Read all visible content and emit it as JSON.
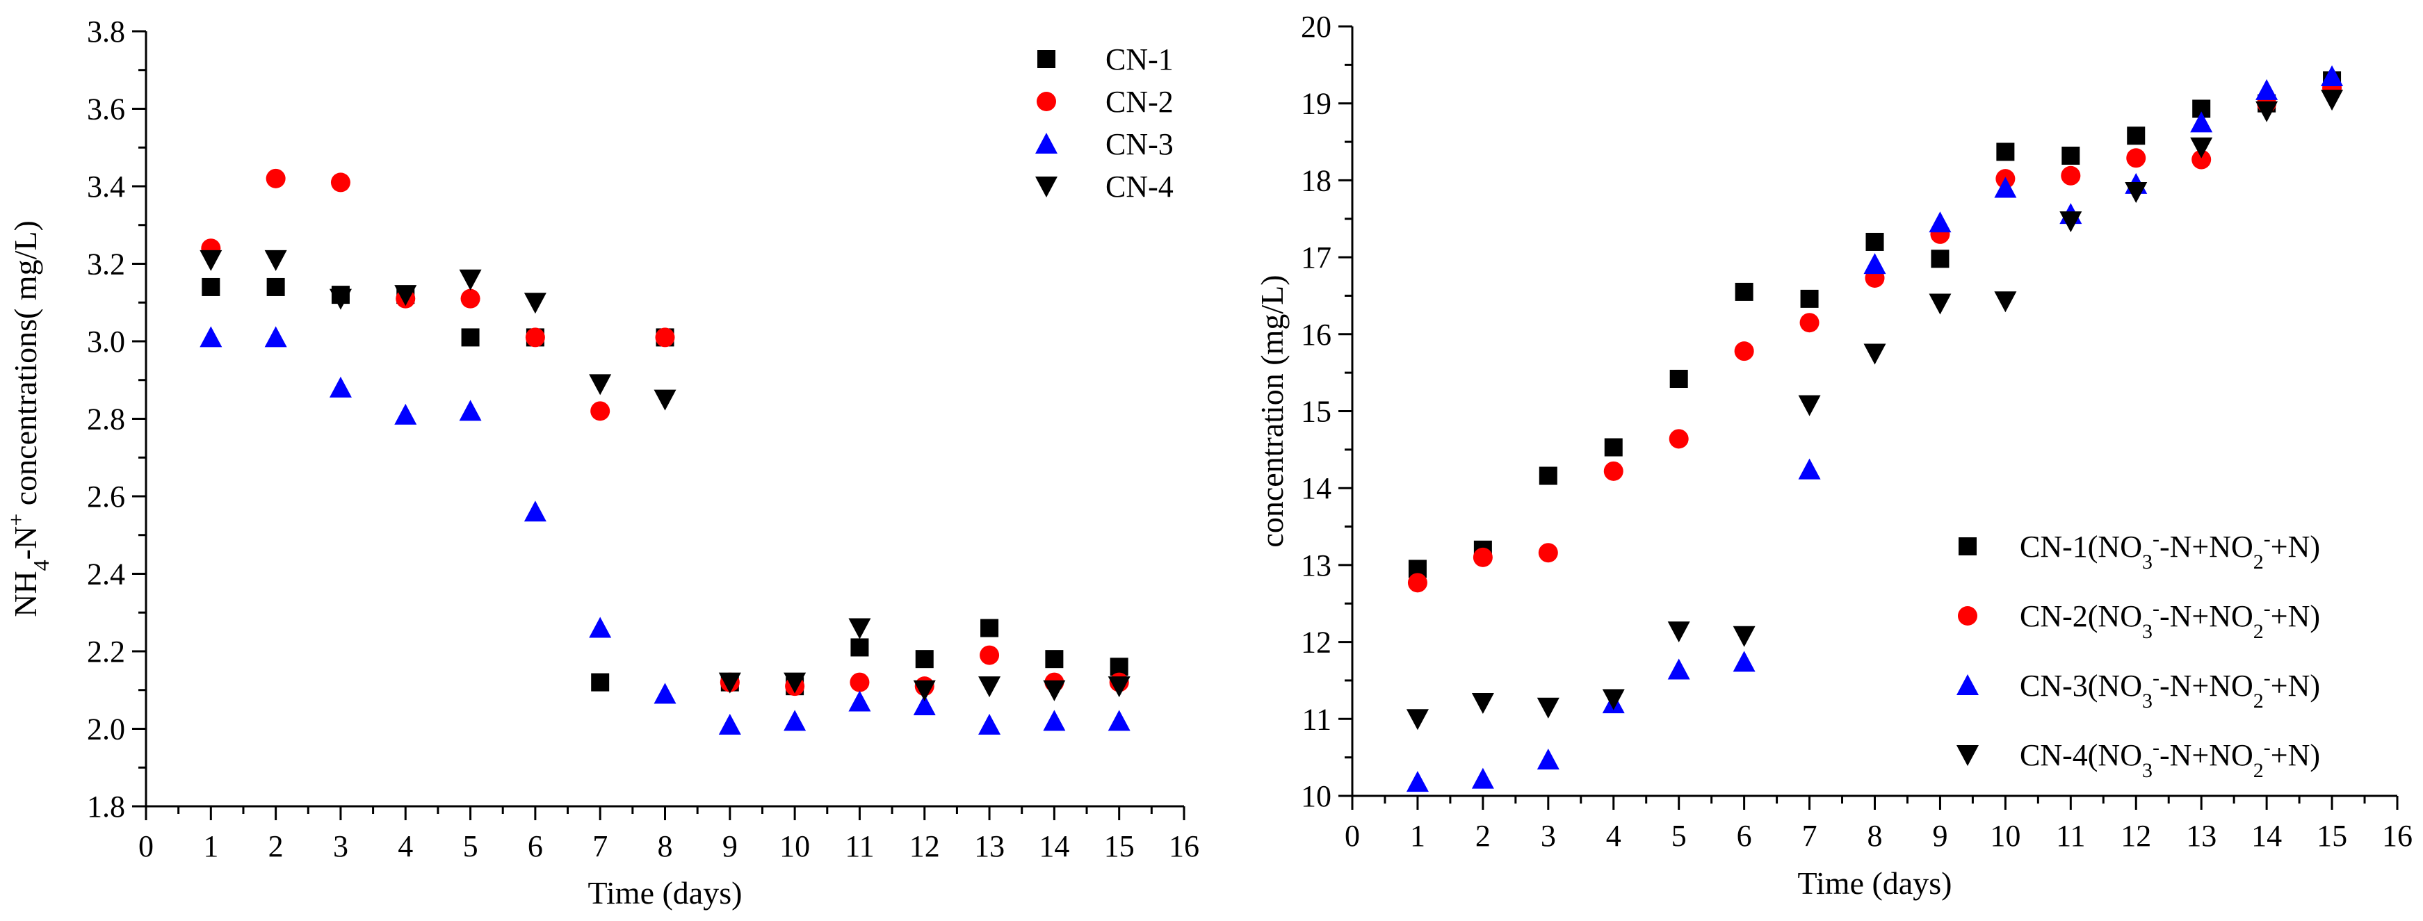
{
  "chart_data": [
    {
      "type": "scatter",
      "xlabel": "Time (days)",
      "ylabel": "NH4-N+ concentrations( mg/L)",
      "ylabel_parts": {
        "main": "NH",
        "sub1": "4",
        "mid": "-N",
        "sup": "+",
        "tail": " concentrations(  mg/L)"
      },
      "xlim": [
        0,
        16
      ],
      "ylim": [
        1.8,
        3.8
      ],
      "xticks": [
        0,
        1,
        2,
        3,
        4,
        5,
        6,
        7,
        8,
        9,
        10,
        11,
        12,
        13,
        14,
        15,
        16
      ],
      "yticks": [
        "1.8",
        "2.0",
        "2.2",
        "2.4",
        "2.6",
        "2.8",
        "3.0",
        "3.2",
        "3.4",
        "3.6",
        "3.8"
      ],
      "legend_position": "top-right",
      "x": [
        1,
        2,
        3,
        4,
        5,
        6,
        7,
        8,
        9,
        10,
        11,
        12,
        13,
        14,
        15
      ],
      "series": [
        {
          "name": "CN-1",
          "marker": "square",
          "color": "#000000",
          "values": [
            3.14,
            3.14,
            3.12,
            3.12,
            3.01,
            3.01,
            2.12,
            3.01,
            2.12,
            2.11,
            2.21,
            2.18,
            2.26,
            2.18,
            2.16
          ]
        },
        {
          "name": "CN-2",
          "marker": "circle",
          "color": "#ff0000",
          "values": [
            3.24,
            3.42,
            3.41,
            3.11,
            3.11,
            3.01,
            2.82,
            3.01,
            2.12,
            2.11,
            2.12,
            2.11,
            2.19,
            2.12,
            2.12
          ]
        },
        {
          "name": "CN-3",
          "marker": "triangle-up",
          "color": "#0000ff",
          "values": [
            3.01,
            3.01,
            2.88,
            2.81,
            2.82,
            2.56,
            2.26,
            2.09,
            2.01,
            2.02,
            2.07,
            2.06,
            2.01,
            2.02,
            2.02
          ]
        },
        {
          "name": "CN-4",
          "marker": "triangle-down",
          "color": "#000000",
          "values": [
            3.21,
            3.21,
            3.11,
            3.12,
            3.16,
            3.1,
            2.89,
            2.85,
            2.12,
            2.12,
            2.26,
            2.1,
            2.11,
            2.1,
            2.11
          ]
        }
      ]
    },
    {
      "type": "scatter",
      "xlabel": "Time (days)",
      "ylabel": "concentration (mg/L)",
      "xlim": [
        0,
        16
      ],
      "ylim": [
        10,
        20
      ],
      "xticks": [
        0,
        1,
        2,
        3,
        4,
        5,
        6,
        7,
        8,
        9,
        10,
        11,
        12,
        13,
        14,
        15,
        16
      ],
      "yticks": [
        "10",
        "11",
        "12",
        "13",
        "14",
        "15",
        "16",
        "17",
        "18",
        "19",
        "20"
      ],
      "legend_position": "bottom-right",
      "x": [
        1,
        2,
        3,
        4,
        5,
        6,
        7,
        8,
        9,
        10,
        11,
        12,
        13,
        14,
        15
      ],
      "series": [
        {
          "name": "CN-1(NO3--N+NO2-+N)",
          "label_parts": [
            "CN-1"
          ],
          "marker": "square",
          "color": "#000000",
          "values": [
            12.95,
            13.2,
            14.16,
            14.53,
            15.42,
            16.55,
            16.46,
            17.2,
            16.98,
            18.37,
            18.32,
            18.58,
            18.93,
            19.0,
            19.3
          ]
        },
        {
          "name": "CN-2(NO3--N+NO2-+N)",
          "label_parts": [
            "CN-2"
          ],
          "marker": "circle",
          "color": "#ff0000",
          "values": [
            12.77,
            13.1,
            13.16,
            14.22,
            14.64,
            15.78,
            16.15,
            16.73,
            17.3,
            18.02,
            18.06,
            18.29,
            18.27,
            19.0,
            19.2
          ]
        },
        {
          "name": "CN-3(NO3--N+NO2-+N)",
          "label_parts": [
            "CN-3"
          ],
          "marker": "triangle-up",
          "color": "#0000ff",
          "values": [
            10.18,
            10.22,
            10.47,
            11.2,
            11.64,
            11.74,
            14.24,
            16.91,
            17.45,
            17.9,
            17.56,
            17.95,
            18.75,
            19.17,
            19.35
          ]
        },
        {
          "name": "CN-4(NO3--N+NO2-+N)",
          "label_parts": [
            "CN-4"
          ],
          "marker": "triangle-down",
          "color": "#000000",
          "values": [
            11.0,
            11.21,
            11.15,
            11.26,
            12.14,
            12.08,
            15.08,
            15.75,
            16.4,
            16.43,
            17.47,
            17.85,
            18.43,
            18.9,
            19.05
          ]
        }
      ],
      "legend_formula": {
        "a": "(NO",
        "b": "3",
        "c": "-",
        "d": "-N+NO",
        "e": "2",
        "f": "-",
        "g": "+N)"
      }
    }
  ]
}
